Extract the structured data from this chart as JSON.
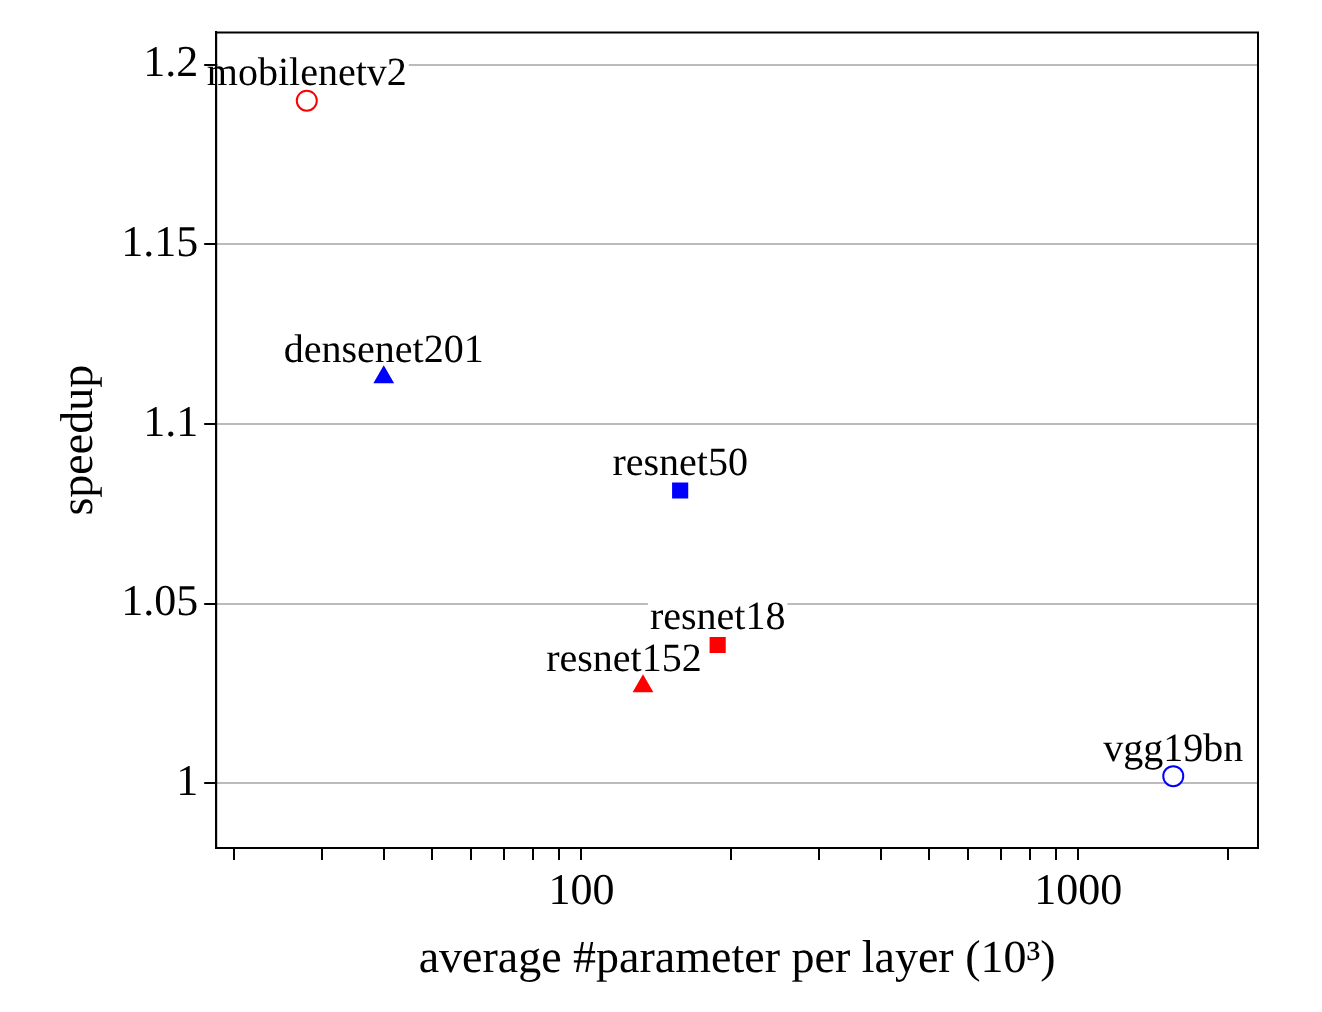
{
  "chart_data": {
    "type": "scatter",
    "xlabel": "average #parameter per layer (10³)",
    "ylabel": "speedup",
    "log": "x",
    "grid": "y",
    "legend": false,
    "xlim": [
      18.4,
      2300
    ],
    "ylim": [
      0.982,
      1.209
    ],
    "xticks": [
      {
        "value": 20,
        "label": null
      },
      {
        "value": 30,
        "label": null
      },
      {
        "value": 40,
        "label": null
      },
      {
        "value": 50,
        "label": null
      },
      {
        "value": 60,
        "label": null
      },
      {
        "value": 70,
        "label": null
      },
      {
        "value": 80,
        "label": null
      },
      {
        "value": 90,
        "label": null
      },
      100,
      {
        "value": 200,
        "label": null
      },
      {
        "value": 300,
        "label": null
      },
      {
        "value": 400,
        "label": null
      },
      {
        "value": 500,
        "label": null
      },
      {
        "value": 600,
        "label": null
      },
      {
        "value": 700,
        "label": null
      },
      {
        "value": 800,
        "label": null
      },
      {
        "value": 900,
        "label": null
      },
      1000,
      {
        "value": 2000,
        "label": null
      }
    ],
    "yticks": [
      1,
      1.05,
      1.1,
      1.15,
      1.2
    ],
    "series": [
      {
        "name": "mobilenetv2",
        "color": "#ff0000",
        "marker": "circle",
        "x": [
          28
        ],
        "values": [
          1.19
        ]
      },
      {
        "name": "densenet201",
        "color": "#0000ff",
        "marker": "triangle",
        "x": [
          40
        ],
        "values": [
          1.113
        ]
      },
      {
        "name": "resnet50",
        "color": "#0000ff",
        "marker": "square",
        "x": [
          158
        ],
        "values": [
          1.0815
        ]
      },
      {
        "name": "resnet18",
        "color": "#ff0000",
        "marker": "square",
        "x": [
          188
        ],
        "values": [
          1.0385
        ]
      },
      {
        "name": "resnet152",
        "color": "#ff0000",
        "marker": "triangle",
        "x": [
          133
        ],
        "values": [
          1.027
        ]
      },
      {
        "name": "vgg19bn",
        "color": "#0000ff",
        "marker": "circle",
        "x": [
          1553
        ],
        "values": [
          1.002
        ]
      }
    ]
  }
}
